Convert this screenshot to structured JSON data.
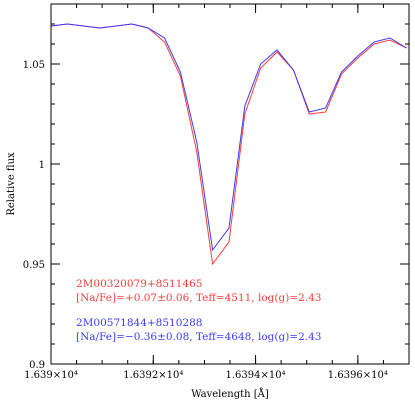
{
  "chart_data": {
    "type": "line",
    "xlabel": "Wavelength [Å]",
    "ylabel": "Relative flux",
    "xlim": [
      16390,
      16397
    ],
    "ylim": [
      0.9,
      1.08
    ],
    "x_ticks": [
      {
        "value": 16390,
        "label": "1.639×10⁴"
      },
      {
        "value": 16392,
        "label": "1.6392×10⁴"
      },
      {
        "value": 16394,
        "label": "1.6394×10⁴"
      },
      {
        "value": 16396,
        "label": "1.6396×10⁴"
      }
    ],
    "x_minor_step": 0.5,
    "y_ticks": [
      {
        "value": 0.95,
        "label": "0.95"
      },
      {
        "value": 1.0,
        "label": "1"
      },
      {
        "value": 1.05,
        "label": "1.05"
      }
    ],
    "y_minor_step": 0.01,
    "grid": false,
    "legend_position": "bottom-left",
    "series": [
      {
        "name": "2M00320079+8511465",
        "label": "[Na/Fe]=+0.07±0.06, Teff=4511, log(g)=2.43",
        "color": "#ff3b3b",
        "x": [
          16390.0,
          16390.32,
          16390.95,
          16391.58,
          16391.9,
          16392.22,
          16392.53,
          16392.85,
          16393.16,
          16393.48,
          16393.79,
          16394.1,
          16394.42,
          16394.74,
          16395.05,
          16395.37,
          16395.68,
          16396.0,
          16396.32,
          16396.63,
          16396.95
        ],
        "y": [
          1.069,
          1.07,
          1.068,
          1.07,
          1.068,
          1.061,
          1.044,
          1.006,
          0.95,
          0.961,
          1.025,
          1.048,
          1.056,
          1.047,
          1.025,
          1.026,
          1.045,
          1.053,
          1.06,
          1.062,
          1.058
        ]
      },
      {
        "name": "2M00571844+8510288",
        "label": "[Na/Fe]=−0.36±0.08, Teff=4648, log(g)=2.43",
        "color": "#3b3bff",
        "x": [
          16390.0,
          16390.32,
          16390.95,
          16391.58,
          16391.9,
          16392.22,
          16392.53,
          16392.85,
          16393.16,
          16393.48,
          16393.79,
          16394.1,
          16394.42,
          16394.74,
          16395.05,
          16395.37,
          16395.68,
          16396.0,
          16396.32,
          16396.63,
          16396.95
        ],
        "y": [
          1.069,
          1.07,
          1.068,
          1.07,
          1.068,
          1.063,
          1.046,
          1.011,
          0.957,
          0.968,
          1.029,
          1.05,
          1.057,
          1.047,
          1.026,
          1.028,
          1.046,
          1.054,
          1.061,
          1.063,
          1.058
        ]
      }
    ]
  }
}
